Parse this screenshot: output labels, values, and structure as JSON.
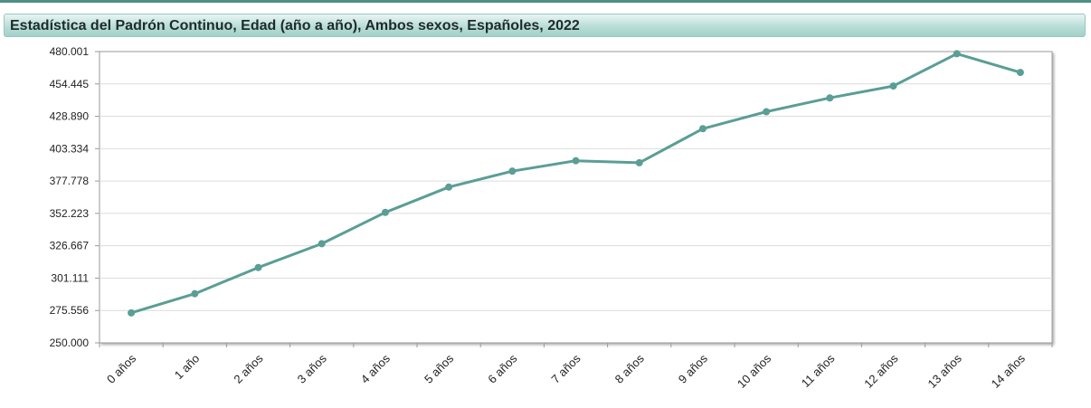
{
  "chart_data": {
    "type": "line",
    "title": "Estadística del Padrón Continuo, Edad (año a año), Ambos sexos, Españoles, 2022",
    "categories": [
      "0 años",
      "1 año",
      "2 años",
      "3 años",
      "4 años",
      "5 años",
      "6 años",
      "7 años",
      "8 años",
      "9 años",
      "10 años",
      "11 años",
      "12 años",
      "13 años",
      "14 años"
    ],
    "series": [
      {
        "values": [
          273700,
          288800,
          309500,
          328300,
          353000,
          373000,
          385600,
          393800,
          392200,
          419100,
          432500,
          443400,
          452800,
          478300,
          463500
        ]
      }
    ],
    "ylim": [
      250000,
      480001
    ],
    "yticks": [
      "250.000",
      "275.556",
      "301.111",
      "326.667",
      "352.223",
      "377.778",
      "403.334",
      "428.890",
      "454.445",
      "480.001"
    ],
    "grid": true,
    "color": "#5a9e96"
  }
}
